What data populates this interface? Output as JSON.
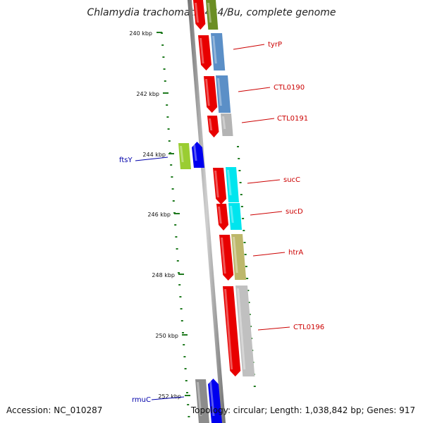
{
  "title": "Chlamydia trachomatis 434/Bu, complete genome",
  "footer": {
    "accession": "Accession: NC_010287",
    "stats": "Topology: circular; Length: 1,038,842 bp; Genes: 917"
  },
  "colors": {
    "backbone": "#8a8a8a",
    "ticks": "#1f7a1f",
    "forward_label": "#cc0000",
    "reverse_label": "#0000aa"
  },
  "ticks": [
    "240 kbp",
    "242 kbp",
    "244 kbp",
    "246 kbp",
    "248 kbp",
    "250 kbp",
    "252 kbp"
  ],
  "gene_labels": [
    {
      "name": "tyrP",
      "strand": "forward"
    },
    {
      "name": "CTL0190",
      "strand": "forward"
    },
    {
      "name": "CTL0191",
      "strand": "forward"
    },
    {
      "name": "ftsY",
      "strand": "reverse"
    },
    {
      "name": "sucC",
      "strand": "forward"
    },
    {
      "name": "sucD",
      "strand": "forward"
    },
    {
      "name": "htrA",
      "strand": "forward"
    },
    {
      "name": "CTL0196",
      "strand": "forward"
    },
    {
      "name": "rmuC",
      "strand": "reverse"
    }
  ]
}
